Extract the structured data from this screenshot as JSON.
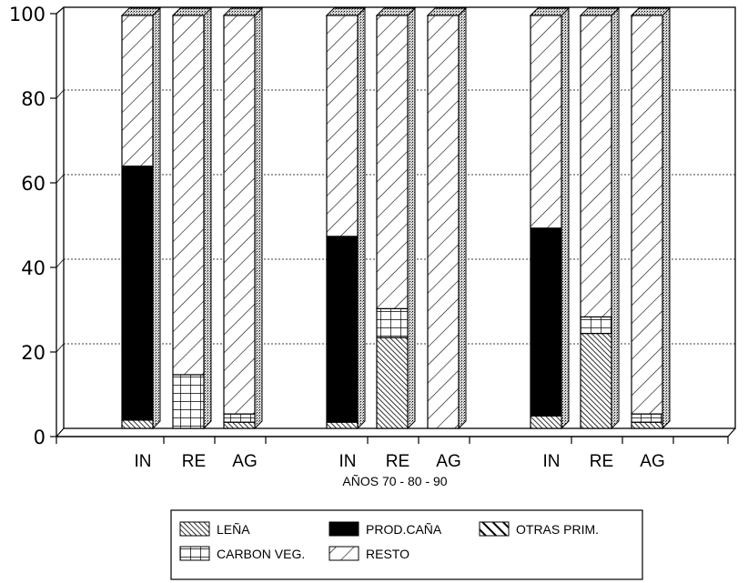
{
  "chart_data": {
    "type": "bar",
    "stacked": true,
    "three_d": true,
    "title": "",
    "xlabel": "AÑOS 70 - 80 - 90",
    "ylabel": "",
    "ylim": [
      0,
      100
    ],
    "yticks": [
      "0",
      "20",
      "40",
      "60",
      "80",
      "100"
    ],
    "grid": true,
    "legend_position": "bottom",
    "groups": [
      "70",
      "80",
      "90"
    ],
    "categories": [
      "IN",
      "RE",
      "AG",
      "IN",
      "RE",
      "AG",
      "IN",
      "RE",
      "AG"
    ],
    "series": [
      {
        "name": "LEÑA",
        "pattern": "fine-diagonal",
        "values": [
          2,
          0,
          1.5,
          1.5,
          22,
          0,
          3,
          23,
          1.5
        ]
      },
      {
        "name": "CARBON VEG.",
        "pattern": "grid",
        "values": [
          0,
          13,
          2,
          0,
          7,
          0,
          0,
          4,
          2
        ]
      },
      {
        "name": "PROD.CAÑA",
        "pattern": "solid-black",
        "values": [
          61.5,
          0,
          0,
          45,
          0,
          0,
          45.5,
          0,
          0
        ]
      },
      {
        "name": "OTRAS PRIM.",
        "pattern": "bold-diagonal",
        "values": [
          0,
          0,
          0,
          0,
          0,
          0,
          0,
          0,
          0
        ]
      },
      {
        "name": "RESTO",
        "pattern": "light-diagonal",
        "values": [
          36.5,
          87,
          96.5,
          53.5,
          71,
          100,
          51.5,
          73,
          96.5
        ]
      }
    ],
    "legend": {
      "entries": [
        "LEÑA",
        "PROD.CAÑA",
        "OTRAS PRIM.",
        "CARBON VEG.",
        "RESTO"
      ]
    }
  },
  "colors": {
    "ink": "#000000",
    "background": "#ffffff",
    "side": "#b8b8b8"
  }
}
